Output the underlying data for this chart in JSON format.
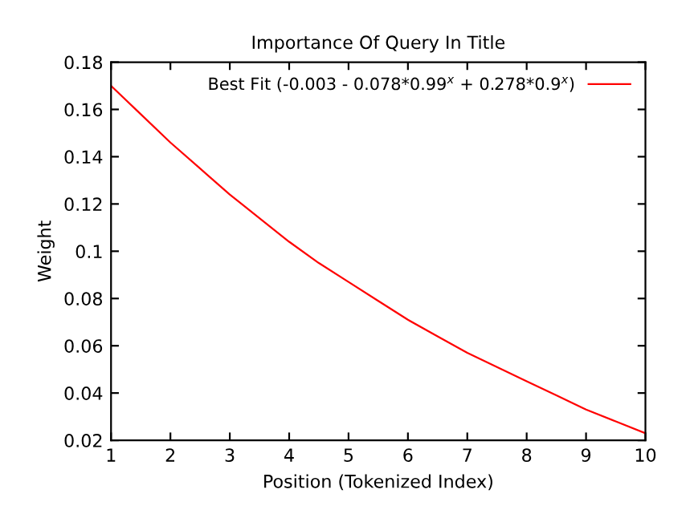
{
  "chart_data": {
    "type": "line",
    "title": "Importance Of Query In Title",
    "xlabel": "Position (Tokenized Index)",
    "ylabel": "Weight",
    "x": [
      1,
      1.5,
      2,
      2.5,
      3,
      3.5,
      4,
      4.5,
      5,
      5.5,
      6,
      6.5,
      7,
      7.5,
      8,
      8.5,
      9,
      9.5,
      10
    ],
    "series": [
      {
        "name": "Best Fit (-0.003 - 0.078*0.99$^{x}$ + 0.278*0.9$^{x}$)",
        "color": "#ff0000",
        "values": [
          0.17,
          0.158,
          0.146,
          0.135,
          0.124,
          0.114,
          0.104,
          0.095,
          0.087,
          0.079,
          0.071,
          0.064,
          0.057,
          0.051,
          0.045,
          0.039,
          0.033,
          0.028,
          0.023
        ]
      }
    ],
    "xlim": [
      1,
      10
    ],
    "ylim": [
      0.02,
      0.18
    ],
    "xticks": [
      1,
      2,
      3,
      4,
      5,
      6,
      7,
      8,
      9,
      10
    ],
    "yticks": [
      0.02,
      0.04,
      0.06,
      0.08,
      0.1,
      0.12,
      0.14,
      0.16,
      0.18
    ],
    "legend": "top right",
    "grid": false
  }
}
